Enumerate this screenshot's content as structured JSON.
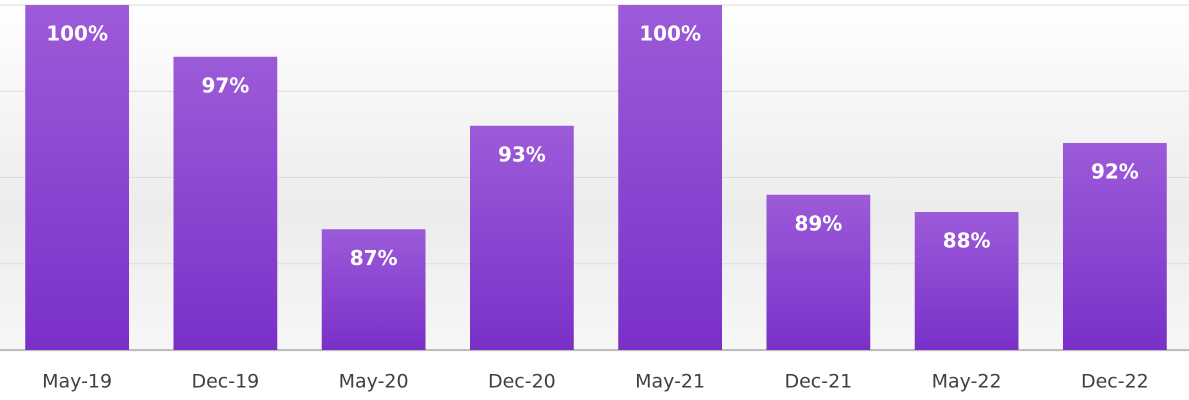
{
  "chart_data": {
    "type": "bar",
    "categories": [
      "May-19",
      "Dec-19",
      "May-20",
      "Dec-20",
      "May-21",
      "Dec-21",
      "May-22",
      "Dec-22"
    ],
    "values": [
      100,
      97,
      87,
      93,
      100,
      89,
      88,
      92
    ],
    "value_labels": [
      "100%",
      "97%",
      "87%",
      "93%",
      "100%",
      "89%",
      "88%",
      "92%"
    ],
    "color": "#8a3fd1",
    "ylim": [
      80,
      100
    ],
    "yticks": [
      80,
      85,
      90,
      95,
      100
    ],
    "grid": true
  }
}
